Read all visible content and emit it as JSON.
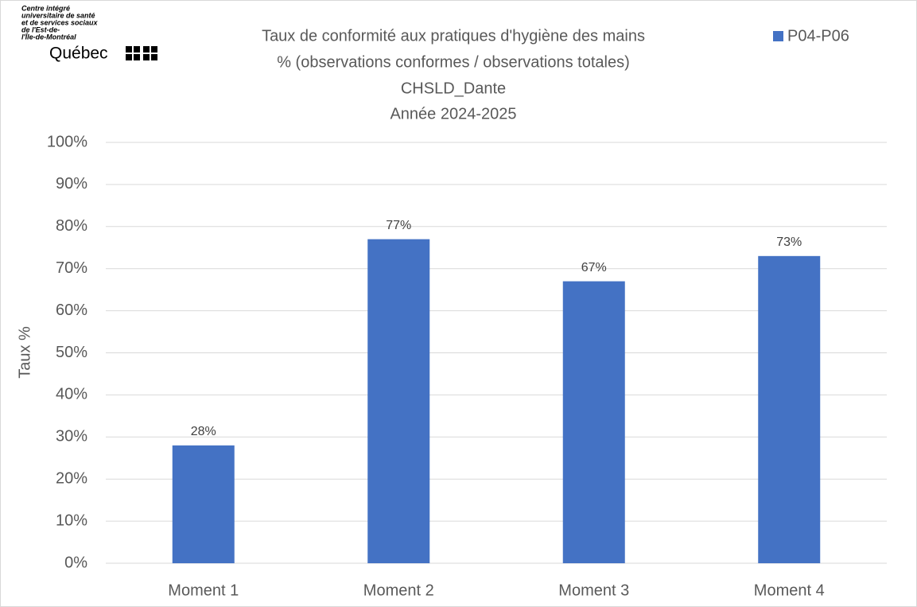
{
  "logo": {
    "lines": [
      "Centre intégré",
      "universitaire de santé",
      "et de services sociaux",
      "de l'Est-de-",
      "l'Île-de-Montréal"
    ],
    "brand": "Québec"
  },
  "chart_data": {
    "type": "bar",
    "title": [
      "Taux de conformité aux pratiques d'hygiène des mains",
      "% (observations conformes / observations totales)",
      "CHSLD_Dante",
      "Année 2024-2025"
    ],
    "y_label": "Taux %",
    "categories": [
      "Moment 1",
      "Moment 2",
      "Moment 3",
      "Moment 4"
    ],
    "series": [
      {
        "name": "P04-P06",
        "color": "#4472c4",
        "values": [
          28,
          77,
          67,
          73
        ],
        "value_labels": [
          "28%",
          "77%",
          "67%",
          "73%"
        ]
      }
    ],
    "ylim": [
      0,
      100
    ],
    "yticks": [
      {
        "value": 0,
        "label": "0%"
      },
      {
        "value": 10,
        "label": "10%"
      },
      {
        "value": 20,
        "label": "20%"
      },
      {
        "value": 30,
        "label": "30%"
      },
      {
        "value": 40,
        "label": "40%"
      },
      {
        "value": 50,
        "label": "50%"
      },
      {
        "value": 60,
        "label": "60%"
      },
      {
        "value": 70,
        "label": "70%"
      },
      {
        "value": 80,
        "label": "80%"
      },
      {
        "value": 90,
        "label": "90%"
      },
      {
        "value": 100,
        "label": "100%"
      }
    ],
    "grid": true,
    "legend": "top-right"
  }
}
